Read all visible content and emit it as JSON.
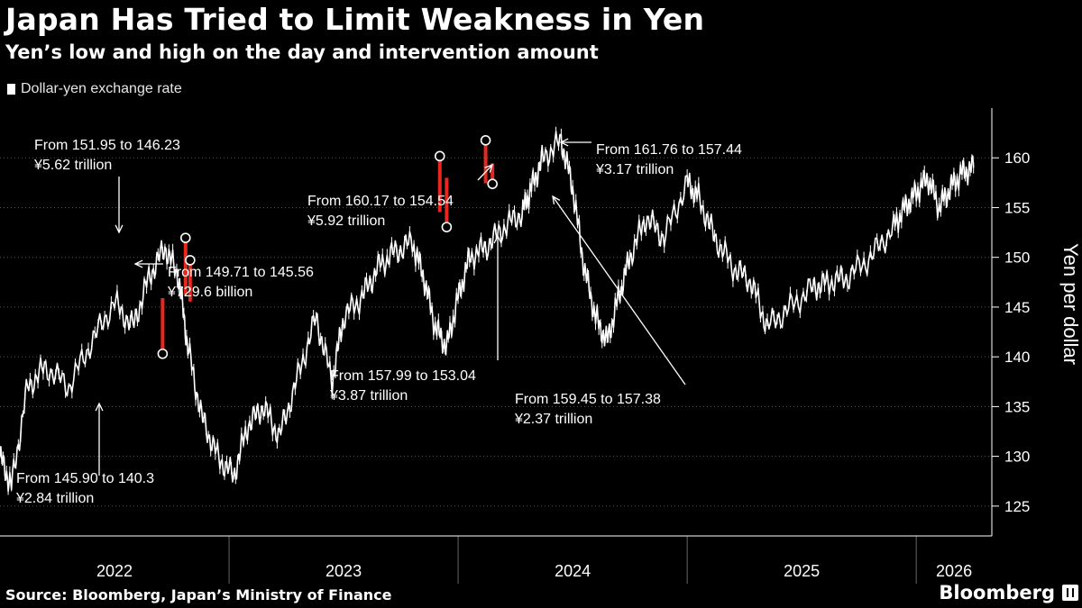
{
  "header": {
    "title": "Japan Has Tried to Limit Weakness in Yen",
    "subtitle": "Yen’s low and high on the day and intervention amount"
  },
  "footer": {
    "source": "Source: Bloomberg, Japan’s Ministry of Finance",
    "brand": "Bloomberg"
  },
  "colors": {
    "background": "#000000",
    "price": "#ffffff",
    "intervention": "#e8281e",
    "grid": "#555555"
  },
  "chart_data": {
    "type": "line",
    "legend": [
      "Dollar-yen exchange rate"
    ],
    "legend_placement": "top-left",
    "ylabel": "Yen per dollar",
    "ylim": [
      122,
      165
    ],
    "yticks": [
      125,
      130,
      135,
      140,
      145,
      150,
      155,
      160
    ],
    "xlim": [
      2022.0,
      2026.33
    ],
    "year_labels": [
      "2022",
      "2023",
      "2024",
      "2025",
      "2026"
    ],
    "grid": true,
    "series": [
      {
        "name": "Dollar-yen exchange rate",
        "x": [
          2022.0,
          2022.05,
          2022.12,
          2022.2,
          2022.3,
          2022.4,
          2022.5,
          2022.58,
          2022.65,
          2022.72,
          2022.78,
          2022.82,
          2022.88,
          2022.95,
          2023.02,
          2023.08,
          2023.15,
          2023.22,
          2023.3,
          2023.38,
          2023.45,
          2023.5,
          2023.58,
          2023.65,
          2023.72,
          2023.8,
          2023.85,
          2023.9,
          2023.95,
          2024.0,
          2024.05,
          2024.12,
          2024.2,
          2024.28,
          2024.32,
          2024.37,
          2024.45,
          2024.5,
          2024.55,
          2024.6,
          2024.65,
          2024.7,
          2024.75,
          2024.82,
          2024.9,
          2025.0,
          2025.05,
          2025.12,
          2025.2,
          2025.28,
          2025.35,
          2025.45,
          2025.55,
          2025.62,
          2025.7,
          2025.8,
          2025.9,
          2025.95,
          2026.0,
          2026.05,
          2026.1,
          2026.15,
          2026.2,
          2026.25
        ],
        "y": [
          130.0,
          127.0,
          137.0,
          139.0,
          137.0,
          141.5,
          145.5,
          143.0,
          148.0,
          151.0,
          148.0,
          141.0,
          134.0,
          130.0,
          128.0,
          133.0,
          135.0,
          132.0,
          138.0,
          144.0,
          137.5,
          144.0,
          146.0,
          149.0,
          150.5,
          151.5,
          148.0,
          143.0,
          141.0,
          146.0,
          150.0,
          151.0,
          153.0,
          154.5,
          157.0,
          160.0,
          161.7,
          157.0,
          149.0,
          144.0,
          141.5,
          146.0,
          150.0,
          154.0,
          152.0,
          157.5,
          156.0,
          152.0,
          149.0,
          147.5,
          143.0,
          145.0,
          147.0,
          147.5,
          148.0,
          150.0,
          153.0,
          155.0,
          156.5,
          158.0,
          155.0,
          157.0,
          158.5,
          159.0
        ]
      }
    ],
    "interventions": [
      {
        "x": 2022.71,
        "high": 145.9,
        "low": 140.31,
        "label": "From 145.90 to 140.3",
        "amount": "¥2.84 trillion"
      },
      {
        "x": 2022.81,
        "high": 151.95,
        "low": 146.23,
        "label": "From 151.95 to 146.23",
        "amount": "¥5.62 trillion"
      },
      {
        "x": 2022.83,
        "high": 149.71,
        "low": 145.56,
        "label": "From 149.71 to 145.56",
        "amount": "¥729.6 billion"
      },
      {
        "x": 2023.92,
        "high": 160.17,
        "low": 154.54,
        "label": "From 160.17 to 154.54",
        "amount": "¥5.92 trillion"
      },
      {
        "x": 2023.95,
        "high": 157.99,
        "low": 153.04,
        "label": "From 157.99 to 153.04",
        "amount": "¥3.87 trillion"
      },
      {
        "x": 2024.12,
        "high": 161.76,
        "low": 157.44,
        "label": "From 161.76 to 157.44",
        "amount": "¥3.17 trillion"
      },
      {
        "x": 2024.15,
        "high": 159.45,
        "low": 157.38,
        "label": "From 159.45 to 157.38",
        "amount": "¥2.37 trillion"
      }
    ]
  }
}
